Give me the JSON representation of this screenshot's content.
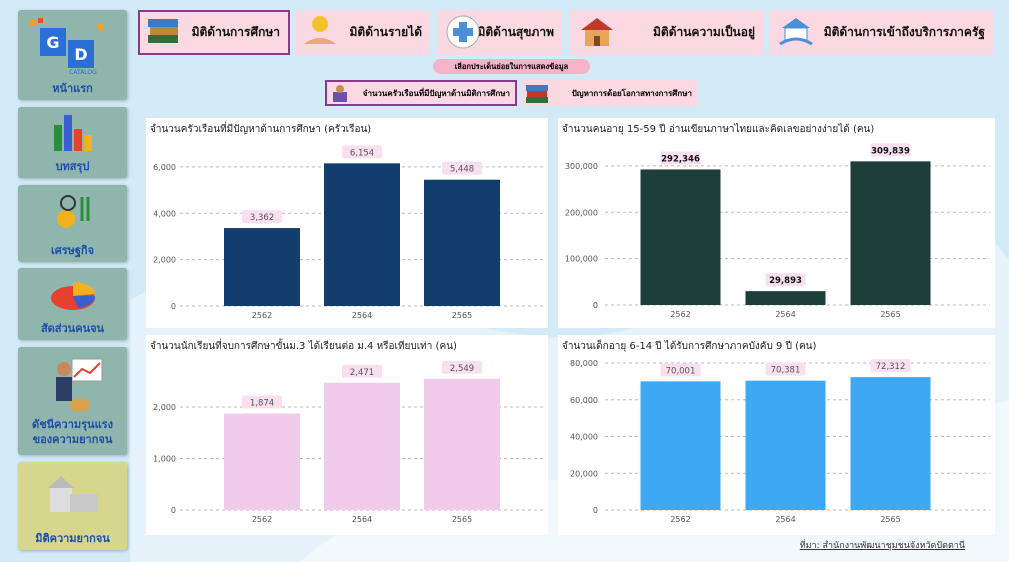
{
  "logo": [
    "G",
    "D",
    "CATALOG"
  ],
  "nav": [
    "หน้าแรก",
    "บทสรุป",
    "เศรษฐกิจ",
    "สัดส่วนคนจน",
    "ดัชนีความรุนแรง\nของความยากจน",
    "มิติความยากจน"
  ],
  "tabs": [
    "มิติด้านการศึกษา",
    "มิติด้านรายได้",
    "มิติด้านสุขภาพ",
    "มิติด้านความเป็นอยู่",
    "มิติด้านการเข้าถึงบริการภาครัฐ"
  ],
  "subtitle": "เลือกประเด็นย่อยในการแสดงข้อมูล",
  "subtabs": [
    "จำนวนครัวเรือนที่มีปัญหาด้านมิติการศึกษา",
    "ปัญหาการด้อยโอกาสทางการศึกษา"
  ],
  "source": "ที่มา: สำนักงานพัฒนาชุมชนจังหวัดปัตตานี",
  "chart_data": [
    {
      "type": "bar",
      "title": "จำนวนครัวเรือนที่มีปัญหาด้านการศึกษา (ครัวเรือน)",
      "categories": [
        "2562",
        "2564",
        "2565"
      ],
      "values": [
        3362,
        6154,
        5448
      ],
      "value_labels": [
        "3,362",
        "6,154",
        "5,448"
      ],
      "color": "#123e6e",
      "ylim": [
        0,
        6600
      ],
      "yticks": [
        0,
        {
          "value": 2000,
          "label": "2,000"
        },
        {
          "value": 4000,
          "label": "4,000"
        },
        {
          "value": 6000,
          "label": "6,000"
        }
      ],
      "grid": true
    },
    {
      "type": "bar",
      "title": "จำนวนคนอายุ 15-59 ปี อ่านเขียนภาษาไทยและคิดเลขอย่างง่ายได้ (คน)",
      "categories": [
        "2562",
        "2564",
        "2565"
      ],
      "values": [
        292346,
        29893,
        309839
      ],
      "value_labels": [
        "292,346",
        "29,893",
        "309,839"
      ],
      "color": "#1b3f38",
      "ylim": [
        0,
        330000
      ],
      "yticks": [
        0,
        {
          "value": 100000,
          "label": "100,000"
        },
        {
          "value": 200000,
          "label": "200,000"
        },
        {
          "value": 300000,
          "label": "300,000"
        }
      ],
      "grid": true
    },
    {
      "type": "bar",
      "title": "จำนวนนักเรียนที่จบการศึกษาขั้นม.3 ได้เรียนต่อ ม.4 หรือเทียบเท่า (คน)",
      "categories": [
        "2562",
        "2564",
        "2565"
      ],
      "values": [
        1874,
        2471,
        2549
      ],
      "value_labels": [
        "1,874",
        "2,471",
        "2,549"
      ],
      "color": "#f0cbeb",
      "ylim": [
        0,
        2700
      ],
      "yticks": [
        0,
        {
          "value": 1000,
          "label": "1,000"
        },
        {
          "value": 2000,
          "label": "2,000"
        }
      ],
      "grid": true
    },
    {
      "type": "bar",
      "title": "จำนวนเด็กอายุ 6-14 ปี ได้รับการศึกษาภาคบังคับ 9 ปี (คน)",
      "categories": [
        "2562",
        "2564",
        "2565"
      ],
      "values": [
        70001,
        70381,
        72312
      ],
      "value_labels": [
        "70,001",
        "70,381",
        "72,312"
      ],
      "color": "#3da8f3",
      "ylim": [
        0,
        80000
      ],
      "yticks": [
        0,
        {
          "value": 20000,
          "label": "20,000"
        },
        {
          "value": 40000,
          "label": "40,000"
        },
        {
          "value": 60000,
          "label": "60,000"
        },
        {
          "value": 80000,
          "label": "80,000"
        }
      ],
      "grid": true
    }
  ]
}
